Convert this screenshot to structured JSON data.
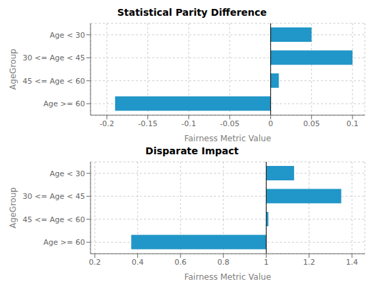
{
  "chart_data": [
    {
      "type": "bar",
      "orientation": "horizontal",
      "title": "Statistical Parity Difference",
      "categories": [
        "Age < 30",
        "30 <= Age < 45",
        "45 <= Age < 60",
        "Age >= 60"
      ],
      "values": [
        0.05,
        0.1,
        0.01,
        -0.19
      ],
      "base": 0.0,
      "color": "#2196c8",
      "xlabel": "Fairness Metric Value",
      "ylabel": "AgeGroup",
      "xlim": [
        -0.22,
        0.115
      ],
      "xticks": [
        -0.2,
        -0.15,
        -0.1,
        -0.05,
        0.0,
        0.05,
        0.1
      ],
      "grid": true
    },
    {
      "type": "bar",
      "orientation": "horizontal",
      "title": "Disparate Impact",
      "categories": [
        "Age < 30",
        "30 <= Age < 45",
        "45 <= Age < 60",
        "Age >= 60"
      ],
      "values": [
        1.13,
        1.35,
        1.01,
        0.37
      ],
      "base": 1.0,
      "color": "#2196c8",
      "xlabel": "Fairness Metric Value",
      "ylabel": "AgeGroup",
      "xlim": [
        0.18,
        1.46
      ],
      "xticks": [
        0.2,
        0.4,
        0.6,
        0.8,
        1.0,
        1.2,
        1.4
      ],
      "grid": true
    }
  ]
}
